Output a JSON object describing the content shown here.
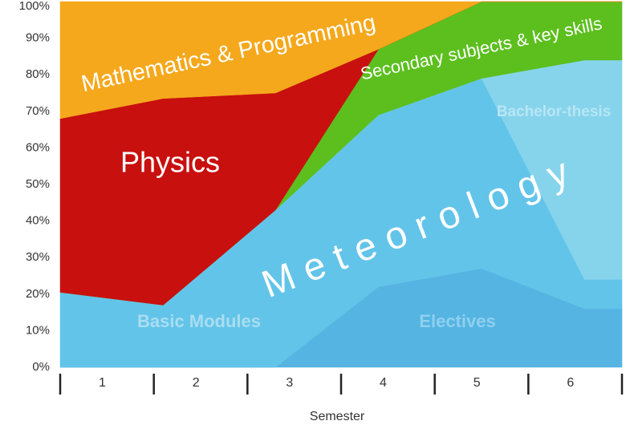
{
  "chart_data": {
    "type": "stacked_area",
    "x_label": "Semester",
    "categories": [
      "1",
      "2",
      "3",
      "4",
      "5",
      "6"
    ],
    "x": [
      0,
      1.1,
      2.3,
      3.4,
      4.5,
      5.6,
      6
    ],
    "xlim": [
      0,
      6
    ],
    "ylim": [
      0,
      100
    ],
    "yticks": [
      {
        "value": 0,
        "label": "0%"
      },
      {
        "value": 10,
        "label": "10%"
      },
      {
        "value": 20,
        "label": "20%"
      },
      {
        "value": 30,
        "label": "30%"
      },
      {
        "value": 40,
        "label": "40%"
      },
      {
        "value": 50,
        "label": "50%"
      },
      {
        "value": 60,
        "label": "60%"
      },
      {
        "value": 70,
        "label": "70%"
      },
      {
        "value": 80,
        "label": "80%"
      },
      {
        "value": 90,
        "label": "90%"
      },
      {
        "value": 100,
        "label": "100%"
      }
    ],
    "annotation": "Meteorology",
    "series": [
      {
        "name": "Electives",
        "color": "#55b4e2",
        "values": [
          0,
          0,
          0,
          22,
          27,
          16,
          16
        ]
      },
      {
        "name": "Basic Modules",
        "color": "#63c4e9",
        "values": [
          20.5,
          17,
          43,
          47,
          52,
          8,
          8
        ]
      },
      {
        "name": "Bachelor-thesis",
        "color": "#86d4ec",
        "values": [
          0,
          0,
          0,
          0,
          0,
          60,
          60
        ]
      },
      {
        "name": "Secondary subjects & key skills",
        "color": "#5cbf1e",
        "values": [
          0,
          0,
          0,
          18,
          21,
          16,
          16
        ]
      },
      {
        "name": "Physics",
        "color": "#c8100f",
        "values": [
          47.5,
          56.5,
          32,
          0,
          0,
          0,
          0
        ]
      },
      {
        "name": "Mathematics & Programming",
        "color": "#f5a81c",
        "values": [
          32,
          26.5,
          25,
          13,
          0,
          0,
          0
        ]
      }
    ]
  }
}
